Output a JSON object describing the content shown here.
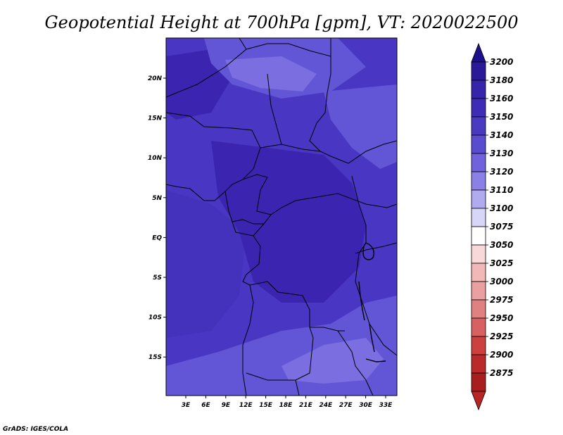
{
  "title": "Geopotential Height at 700hPa [gpm], VT: 2020022500",
  "footer": "GrADS: IGES/COLA",
  "map": {
    "background_fill": "#4937c4",
    "lon_ticks": [
      "3E",
      "6E",
      "9E",
      "12E",
      "15E",
      "18E",
      "21E",
      "24E",
      "27E",
      "30E",
      "33E"
    ],
    "lat_ticks": [
      "20N",
      "15N",
      "10N",
      "5N",
      "EQ",
      "5S",
      "10S",
      "15S"
    ],
    "field_regions": [
      {
        "level": "3150",
        "color": "#4432bd"
      },
      {
        "level": "3160",
        "color": "#3b25b0"
      },
      {
        "level": "3140",
        "color": "#6356d6"
      },
      {
        "level": "3130",
        "color": "#7a6ee0"
      }
    ]
  },
  "colorbar": {
    "levels": [
      "3200",
      "3180",
      "3160",
      "3150",
      "3140",
      "3130",
      "3120",
      "3110",
      "3100",
      "3075",
      "3050",
      "3025",
      "3000",
      "2975",
      "2950",
      "2925",
      "2900",
      "2875"
    ],
    "colors": [
      "#2a1a9a",
      "#3624ab",
      "#3e2cb6",
      "#4a3ac2",
      "#5a4ccf",
      "#7062dc",
      "#8a80e6",
      "#b0aaf0",
      "#d8d6f8",
      "#ffffff",
      "#f8d8d8",
      "#f2b8b8",
      "#eaa0a0",
      "#e08080",
      "#d86060",
      "#cc4040",
      "#bb2a2a",
      "#a81e1e"
    ],
    "top_arrow_color": "#1e0f8a",
    "bottom_arrow_color": "#b82525"
  }
}
